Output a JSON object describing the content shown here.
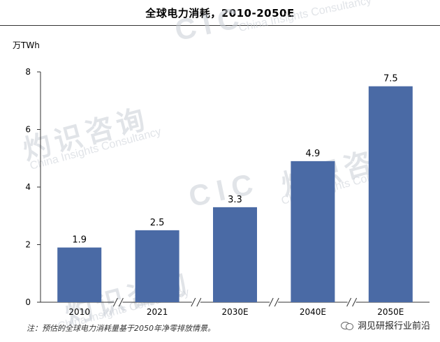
{
  "header": {
    "title": "全球电力消耗，2010-2050E",
    "unit": "万TWh"
  },
  "footnote": "注：预估的全球电力消耗量基于2050年净零排放情景。",
  "watermark": {
    "chinese": "灼识咨询",
    "english": "China Insights Consultancy",
    "logo": "CIC"
  },
  "brand": {
    "label": "洞见研报行业前沿",
    "icon": "wechat-icon"
  },
  "colors": {
    "bar": "#4a6aa5",
    "axis": "#333333"
  },
  "chart_data": {
    "type": "bar",
    "title": "全球电力消耗，2010-2050E",
    "ylabel": "万TWh",
    "xlabel": "",
    "categories": [
      "2010",
      "2021",
      "2030E",
      "2040E",
      "2050E"
    ],
    "values": [
      1.9,
      2.5,
      3.3,
      4.9,
      7.5
    ],
    "data_labels": [
      "1.9",
      "2.5",
      "3.3",
      "4.9",
      "7.5"
    ],
    "ylim": [
      0,
      8
    ],
    "yticks": [
      0,
      2,
      4,
      6,
      8
    ],
    "axis_breaks_between_categories": true,
    "grid": false,
    "legend": "none"
  }
}
